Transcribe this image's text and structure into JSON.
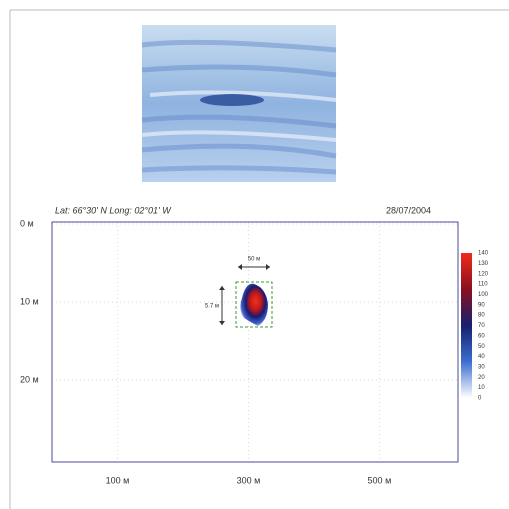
{
  "chart_data": {
    "type": "heatmap",
    "annotations": {
      "position": "Lat: 66°30' N  Long: 02°01' W",
      "date": "28/07/2004",
      "width": "50 м",
      "height": "5.7 м"
    },
    "xlim": [
      0,
      620
    ],
    "xticks": [
      {
        "value": 100,
        "label": "100 м"
      },
      {
        "value": 300,
        "label": "300 м"
      },
      {
        "value": 500,
        "label": "500 м"
      }
    ],
    "ylim": [
      0,
      30
    ],
    "yticks": [
      {
        "value": 0,
        "label": "0 м"
      },
      {
        "value": 10,
        "label": "10 м"
      },
      {
        "value": 20,
        "label": "20 м"
      }
    ],
    "grid": true,
    "colorbar": {
      "lim": [
        0,
        140
      ],
      "ticks": [
        0,
        10,
        20,
        30,
        40,
        50,
        60,
        70,
        80,
        90,
        100,
        110,
        120,
        130,
        140
      ],
      "colors": [
        "#ffffff",
        "#3b6fd0",
        "#15206e",
        "#8a1020",
        "#f02a1a"
      ]
    }
  }
}
